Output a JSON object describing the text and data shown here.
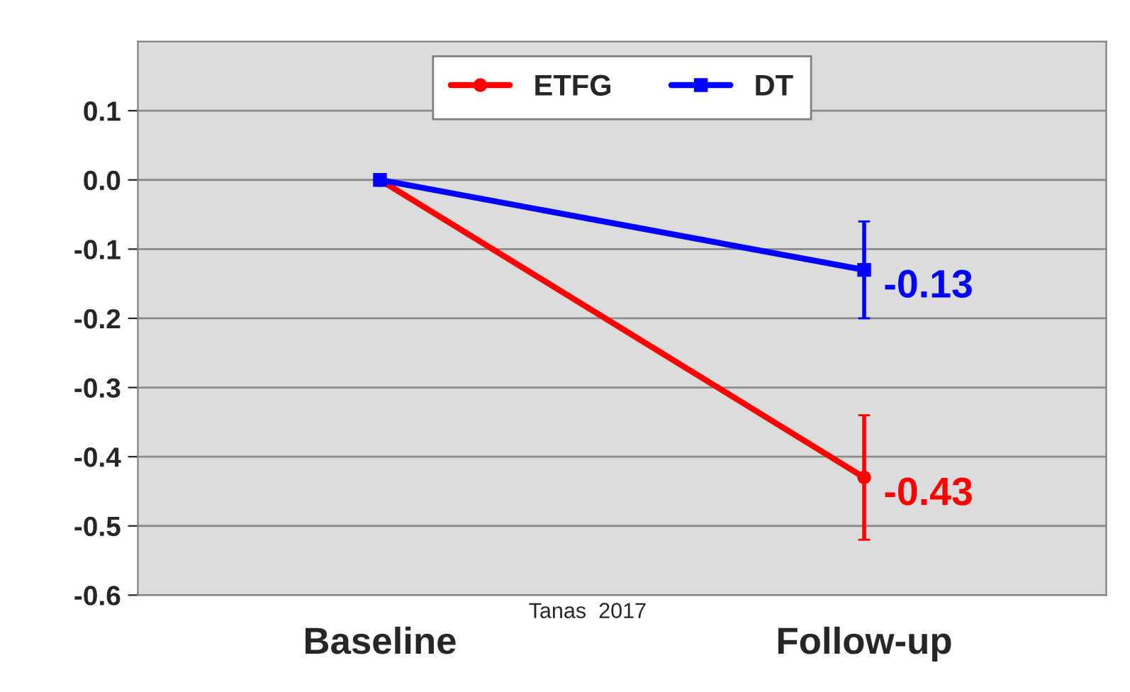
{
  "chart_data": {
    "type": "line",
    "categories": [
      "Baseline",
      "Follow-up"
    ],
    "series": [
      {
        "name": "ETFG",
        "color": "#ff0000",
        "marker": "circle",
        "values": [
          0.0,
          -0.43
        ],
        "errors": [
          null,
          0.09
        ],
        "value_labels": [
          null,
          "-0.43"
        ]
      },
      {
        "name": "DT",
        "color": "#0000ff",
        "marker": "square",
        "values": [
          0.0,
          -0.13
        ],
        "errors": [
          null,
          0.07
        ],
        "value_labels": [
          null,
          "-0.13"
        ]
      }
    ],
    "ylim": [
      -0.6,
      0.2
    ],
    "yticks": [
      {
        "value": -0.6,
        "label": "-0.6"
      },
      {
        "value": -0.5,
        "label": "-0.5"
      },
      {
        "value": -0.4,
        "label": "-0.4"
      },
      {
        "value": -0.3,
        "label": "-0.3"
      },
      {
        "value": -0.2,
        "label": "-0.2"
      },
      {
        "value": -0.1,
        "label": "-0.1"
      },
      {
        "value": 0.0,
        "label": "0.0"
      },
      {
        "value": 0.1,
        "label": "0.1"
      }
    ],
    "grid": "y",
    "legend": "top",
    "annotations": [
      "Tanas  2017"
    ]
  }
}
